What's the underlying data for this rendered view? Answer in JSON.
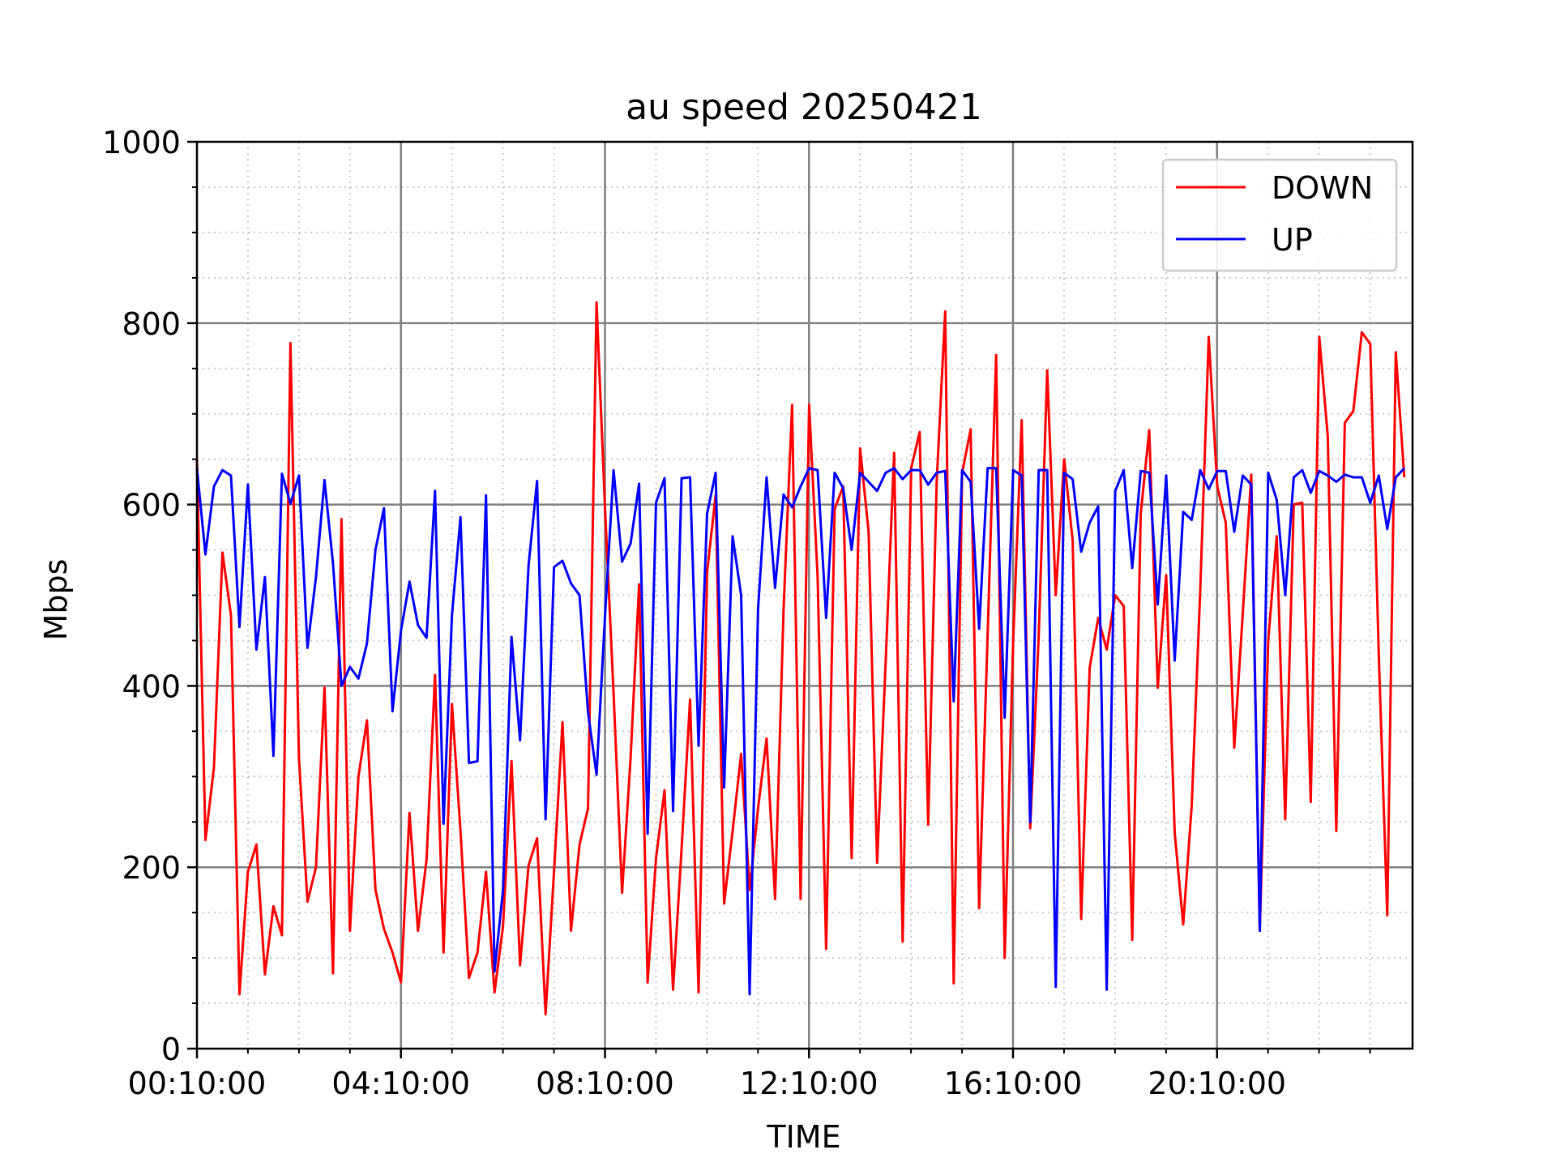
{
  "chart_data": {
    "type": "line",
    "title": "au speed 20250421",
    "xlabel": "TIME",
    "ylabel": "Mbps",
    "ylim": [
      0,
      1000
    ],
    "yticks": [
      0,
      200,
      400,
      600,
      800,
      1000
    ],
    "y_minor_step": 50,
    "x_range_hours": [
      0.1667,
      24.0
    ],
    "x_sample_step_hours": 0.1667,
    "x_ticks": [
      {
        "hour": 0.1667,
        "label": "00:10:00"
      },
      {
        "hour": 4.1667,
        "label": "04:10:00"
      },
      {
        "hour": 8.1667,
        "label": "08:10:00"
      },
      {
        "hour": 12.1667,
        "label": "12:10:00"
      },
      {
        "hour": 16.1667,
        "label": "16:10:00"
      },
      {
        "hour": 20.1667,
        "label": "20:10:00"
      }
    ],
    "x_minor_step_hours": 1,
    "grid": true,
    "legend": "top-right",
    "series": [
      {
        "name": "DOWN",
        "color": "#ff0000",
        "values": [
          650,
          230,
          310,
          547,
          478,
          60,
          195,
          225,
          82,
          157,
          125,
          778,
          320,
          162,
          200,
          398,
          83,
          584,
          130,
          300,
          362,
          175,
          132,
          106,
          73,
          260,
          130,
          208,
          412,
          106,
          380,
          240,
          78,
          106,
          195,
          62,
          135,
          317,
          92,
          202,
          232,
          38,
          195,
          360,
          130,
          225,
          265,
          823,
          595,
          392,
          172,
          320,
          512,
          73,
          210,
          285,
          65,
          220,
          385,
          62,
          525,
          610,
          160,
          240,
          325,
          175,
          265,
          342,
          165,
          485,
          710,
          165,
          710,
          520,
          110,
          595,
          620,
          210,
          662,
          570,
          205,
          425,
          657,
          118,
          640,
          680,
          247,
          625,
          813,
          72,
          635,
          683,
          155,
          457,
          765,
          100,
          450,
          693,
          243,
          455,
          748,
          500,
          650,
          560,
          143,
          420,
          475,
          440,
          500,
          488,
          120,
          590,
          682,
          398,
          522,
          238,
          137,
          268,
          505,
          785,
          620,
          580,
          332,
          480,
          633,
          130,
          450,
          565,
          253,
          600,
          602,
          272,
          785,
          675,
          240,
          690,
          703,
          790,
          777,
          435,
          147,
          768,
          630
        ],
        "visible_markers_note": ""
      },
      {
        "name": "UP",
        "color": "#0000ff",
        "values": [
          640,
          545,
          620,
          638,
          632,
          465,
          622,
          440,
          520,
          323,
          634,
          601,
          632,
          442,
          520,
          627,
          535,
          400,
          421,
          408,
          447,
          550,
          596,
          372,
          461,
          515,
          467,
          453,
          615,
          248,
          478,
          586,
          315,
          317,
          610,
          85,
          175,
          454,
          340,
          533,
          626,
          253,
          531,
          538,
          513,
          500,
          371,
          302,
          478,
          638,
          537,
          557,
          623,
          237,
          602,
          629,
          262,
          629,
          630,
          334,
          590,
          635,
          288,
          565,
          500,
          60,
          485,
          630,
          508,
          611,
          597,
          620,
          640,
          638,
          475,
          635,
          618,
          550,
          635,
          625,
          615,
          635,
          640,
          628,
          638,
          638,
          622,
          635,
          637,
          383,
          638,
          625,
          463,
          640,
          640,
          365,
          638,
          632,
          250,
          638,
          638,
          68,
          635,
          628,
          548,
          580,
          598,
          65,
          615,
          638,
          530,
          637,
          635,
          490,
          632,
          428,
          592,
          583,
          638,
          617,
          637,
          637,
          570,
          632,
          622,
          130,
          635,
          605,
          500,
          630,
          638,
          613,
          637,
          632,
          625,
          633,
          630,
          630,
          602,
          632,
          573,
          630,
          640
        ],
        "visible_markers_note": ""
      }
    ]
  }
}
